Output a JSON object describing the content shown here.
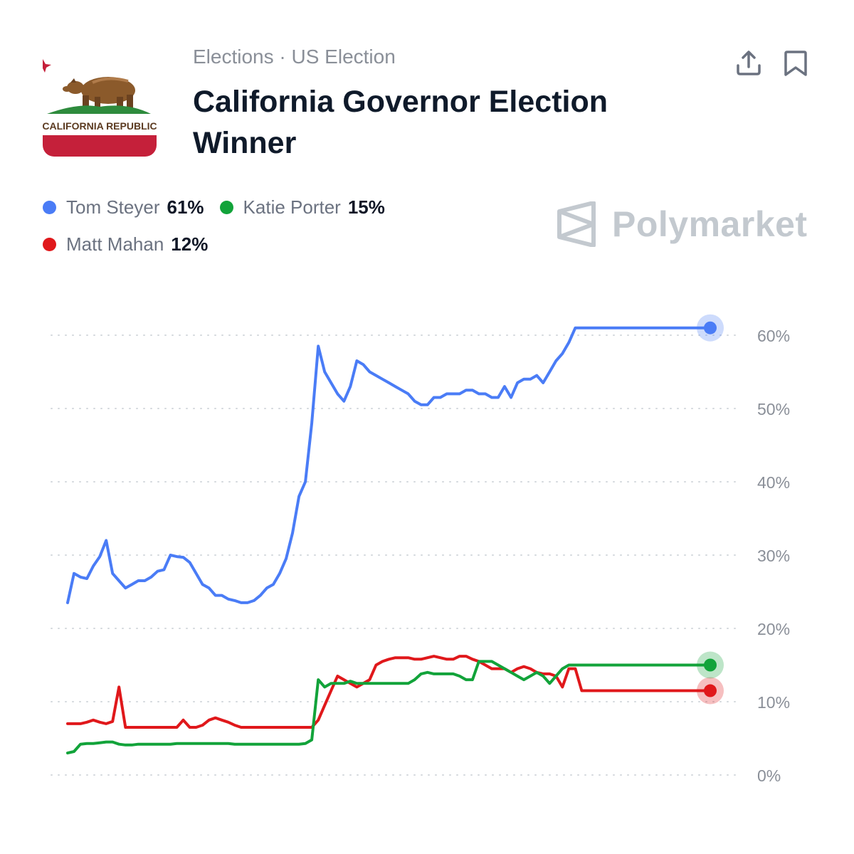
{
  "header": {
    "breadcrumb": "Elections · US Election",
    "title": "California Governor Election Winner",
    "flag_text": "CALIFORNIA REPUBLIC"
  },
  "actions": {
    "share_icon": "share-icon",
    "bookmark_icon": "bookmark-icon"
  },
  "legend": [
    {
      "name": "Tom Steyer",
      "value": "61%",
      "color": "#4a7cf6"
    },
    {
      "name": "Katie Porter",
      "value": "15%",
      "color": "#12a33a"
    },
    {
      "name": "Matt Mahan",
      "value": "12%",
      "color": "#e0181b"
    }
  ],
  "brand": {
    "name": "Polymarket",
    "icon": "polymarket-logo-icon",
    "color": "#c3c9cf"
  },
  "chart_data": {
    "type": "line",
    "title": "California Governor Election Winner",
    "xlabel": "",
    "ylabel": "",
    "ylim": [
      0,
      65
    ],
    "y_ticks": [
      0,
      10,
      20,
      30,
      40,
      50,
      60
    ],
    "y_tick_labels": [
      "0%",
      "10%",
      "20%",
      "30%",
      "40%",
      "50%",
      "60%"
    ],
    "grid": true,
    "x": [
      0,
      1,
      2,
      3,
      4,
      5,
      6,
      7,
      8,
      9,
      10,
      11,
      12,
      13,
      14,
      15,
      16,
      17,
      18,
      19,
      20,
      21,
      22,
      23,
      24,
      25,
      26,
      27,
      28,
      29,
      30,
      31,
      32,
      33,
      34,
      35,
      36,
      37,
      38,
      39,
      40,
      41,
      42,
      43,
      44,
      45,
      46,
      47,
      48,
      49,
      50,
      51,
      52,
      53,
      54,
      55,
      56,
      57,
      58,
      59,
      60,
      61,
      62,
      63,
      64,
      65,
      66,
      67,
      68,
      69,
      70,
      71,
      72,
      73,
      74,
      75,
      76,
      77,
      78,
      79,
      80,
      81,
      82,
      83,
      84,
      85,
      86,
      87,
      88,
      89,
      90,
      91,
      92,
      93,
      94,
      95,
      96,
      97,
      98,
      99,
      100
    ],
    "series": [
      {
        "name": "Tom Steyer",
        "color": "#4a7cf6",
        "values": [
          23.5,
          27.5,
          27.0,
          26.8,
          28.5,
          29.8,
          32.0,
          27.5,
          26.5,
          25.5,
          26.0,
          26.5,
          26.5,
          27.0,
          27.8,
          28.0,
          30.0,
          29.8,
          29.7,
          29.0,
          27.5,
          26.0,
          25.5,
          24.5,
          24.5,
          24.0,
          23.8,
          23.5,
          23.5,
          23.8,
          24.5,
          25.5,
          26.0,
          27.5,
          29.5,
          33.0,
          38.0,
          40.0,
          48.0,
          58.5,
          55.0,
          53.5,
          52.0,
          51.0,
          53.0,
          56.5,
          56.0,
          55.0,
          54.5,
          54.0,
          53.5,
          53.0,
          52.5,
          52.0,
          51.0,
          50.5,
          50.5,
          51.5,
          51.5,
          52.0,
          52.0,
          52.0,
          52.5,
          52.5,
          52.0,
          52.0,
          51.5,
          51.5,
          53.0,
          51.5,
          53.5,
          54.0,
          54.0,
          54.5,
          53.5,
          55.0,
          56.5,
          57.5,
          59.0,
          61.0,
          61.0,
          61.0,
          61.0,
          61.0,
          61.0,
          61.0,
          61.0,
          61.0,
          61.0,
          61.0,
          61.0,
          61.0,
          61.0,
          61.0,
          61.0,
          61.0,
          61.0,
          61.0,
          61.0,
          61.0,
          61.0
        ]
      },
      {
        "name": "Katie Porter",
        "color": "#12a33a",
        "values": [
          3.0,
          3.2,
          4.2,
          4.3,
          4.3,
          4.4,
          4.5,
          4.5,
          4.2,
          4.1,
          4.1,
          4.2,
          4.2,
          4.2,
          4.2,
          4.2,
          4.2,
          4.3,
          4.3,
          4.3,
          4.3,
          4.3,
          4.3,
          4.3,
          4.3,
          4.3,
          4.2,
          4.2,
          4.2,
          4.2,
          4.2,
          4.2,
          4.2,
          4.2,
          4.2,
          4.2,
          4.2,
          4.3,
          4.8,
          13.0,
          12.0,
          12.5,
          12.5,
          12.5,
          12.8,
          12.5,
          12.5,
          12.5,
          12.5,
          12.5,
          12.5,
          12.5,
          12.5,
          12.5,
          13.0,
          13.8,
          14.0,
          13.8,
          13.8,
          13.8,
          13.8,
          13.5,
          13.0,
          13.0,
          15.5,
          15.5,
          15.5,
          15.0,
          14.5,
          14.0,
          13.5,
          13.0,
          13.5,
          14.0,
          13.5,
          12.5,
          13.5,
          14.5,
          15.0,
          15.0,
          15.0,
          15.0,
          15.0,
          15.0,
          15.0,
          15.0,
          15.0,
          15.0,
          15.0,
          15.0,
          15.0,
          15.0,
          15.0,
          15.0,
          15.0,
          15.0,
          15.0,
          15.0,
          15.0,
          15.0,
          15.0
        ]
      },
      {
        "name": "Matt Mahan",
        "color": "#e0181b",
        "values": [
          7.0,
          7.0,
          7.0,
          7.2,
          7.5,
          7.2,
          7.0,
          7.3,
          12.0,
          6.5,
          6.5,
          6.5,
          6.5,
          6.5,
          6.5,
          6.5,
          6.5,
          6.5,
          7.5,
          6.5,
          6.5,
          6.8,
          7.5,
          7.8,
          7.5,
          7.2,
          6.8,
          6.5,
          6.5,
          6.5,
          6.5,
          6.5,
          6.5,
          6.5,
          6.5,
          6.5,
          6.5,
          6.5,
          6.5,
          7.5,
          9.5,
          11.5,
          13.5,
          13.0,
          12.5,
          12.0,
          12.5,
          13.0,
          15.0,
          15.5,
          15.8,
          16.0,
          16.0,
          16.0,
          15.8,
          15.8,
          16.0,
          16.2,
          16.0,
          15.8,
          15.8,
          16.2,
          16.2,
          15.8,
          15.5,
          15.0,
          14.5,
          14.5,
          14.5,
          14.0,
          14.5,
          14.8,
          14.5,
          14.0,
          13.8,
          13.8,
          13.5,
          12.0,
          14.5,
          14.5,
          11.5,
          11.5,
          11.5,
          11.5,
          11.5,
          11.5,
          11.5,
          11.5,
          11.5,
          11.5,
          11.5,
          11.5,
          11.5,
          11.5,
          11.5,
          11.5,
          11.5,
          11.5,
          11.5,
          11.5,
          11.5
        ]
      }
    ]
  }
}
